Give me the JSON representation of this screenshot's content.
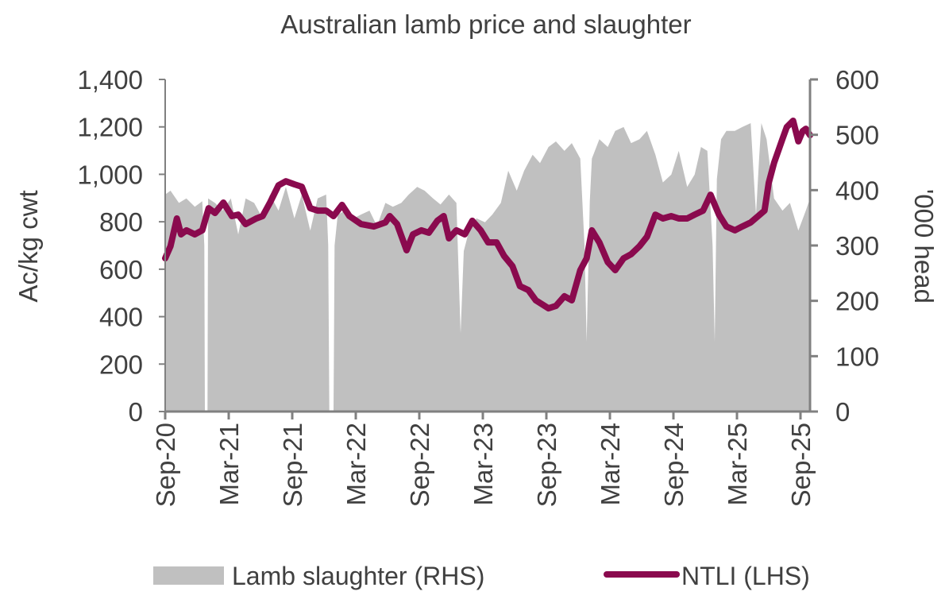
{
  "chart_data": {
    "type": "line",
    "title": "Australian lamb price and slaughter",
    "ylabel_left": "Ac/kg cwt",
    "ylabel_right": "'000 head",
    "ylim_left": [
      0,
      1400
    ],
    "ylim_right": [
      0,
      600
    ],
    "yticks_left": [
      "0",
      "200",
      "400",
      "600",
      "800",
      "1,000",
      "1,200",
      "1,400"
    ],
    "yticks_right": [
      "0",
      "100",
      "200",
      "300",
      "400",
      "500",
      "600"
    ],
    "xticks": [
      "Sep-20",
      "Mar-21",
      "Sep-21",
      "Mar-22",
      "Sep-22",
      "Mar-23",
      "Sep-23",
      "Mar-24",
      "Sep-24",
      "Mar-25",
      "Sep-25"
    ],
    "x_unit": "months since Sep-20",
    "grid": false,
    "legend_position": "bottom",
    "colors": {
      "ntli": "#8A0A4E",
      "slaughter": "#C0C0C0",
      "axis": "#808080"
    },
    "series": [
      {
        "name": "Lamb slaughter (RHS)",
        "type": "area",
        "axis": "right",
        "x": [
          0,
          0.5,
          1.3,
          2,
          2.8,
          3.5,
          3.7,
          3.75,
          4.0,
          4.05,
          4.7,
          5.4,
          6.2,
          6.9,
          7.6,
          8.4,
          9.2,
          9.9,
          10.7,
          11.4,
          12.2,
          12.9,
          13.7,
          14.4,
          15.2,
          15.4,
          15.5,
          15.9,
          16.0,
          16.3,
          17.0,
          17.8,
          18.5,
          19.3,
          20.0,
          20.8,
          21.5,
          22.3,
          23.0,
          23.8,
          24.5,
          25.3,
          26.0,
          26.8,
          27.5,
          27.9,
          28.2,
          28.7,
          29.4,
          30.2,
          30.9,
          31.7,
          32.4,
          33.2,
          33.9,
          34.7,
          35.4,
          36.2,
          36.9,
          37.7,
          38.4,
          39.2,
          39.6,
          39.8,
          40.1,
          40.3,
          41.0,
          41.8,
          42.5,
          43.3,
          44.0,
          44.8,
          45.5,
          46.3,
          47.0,
          47.8,
          48.5,
          49.3,
          50.0,
          50.6,
          51.2,
          51.7,
          51.9,
          52.1,
          52.5,
          53.0,
          53.8,
          54.5,
          55.3,
          55.6,
          55.8,
          56.1,
          56.3,
          56.8,
          57.5,
          58.3,
          59.0,
          59.8,
          60.5,
          60.9
        ],
        "values": [
          392,
          399,
          377,
          385,
          370,
          380,
          300,
          0,
          0,
          385,
          377,
          363,
          385,
          320,
          385,
          377,
          349,
          392,
          363,
          406,
          349,
          392,
          327,
          385,
          392,
          300,
          0,
          0,
          300,
          356,
          363,
          349,
          356,
          363,
          335,
          377,
          370,
          377,
          392,
          406,
          399,
          385,
          374,
          392,
          377,
          141,
          290,
          327,
          349,
          342,
          356,
          377,
          435,
          399,
          435,
          464,
          449,
          478,
          488,
          471,
          485,
          457,
          300,
          126,
          380,
          457,
          492,
          478,
          507,
          514,
          485,
          492,
          507,
          464,
          414,
          428,
          471,
          406,
          428,
          478,
          471,
          300,
          126,
          420,
          492,
          507,
          507,
          514,
          521,
          420,
          356,
          460,
          521,
          492,
          385,
          363,
          377,
          327,
          363,
          385
        ]
      },
      {
        "name": "NTLI (LHS)",
        "type": "line",
        "axis": "left",
        "x": [
          0,
          0.5,
          1.1,
          1.5,
          2.0,
          2.8,
          3.5,
          4.1,
          4.7,
          5.5,
          6.3,
          6.9,
          7.6,
          8.6,
          9.2,
          9.9,
          10.7,
          11.4,
          12.2,
          12.9,
          13.7,
          14.4,
          15.2,
          15.9,
          16.7,
          17.4,
          18.5,
          19.7,
          20.8,
          21.2,
          21.9,
          22.8,
          23.4,
          24.2,
          24.9,
          25.7,
          26.3,
          26.8,
          27.5,
          28.3,
          29.0,
          29.8,
          30.5,
          31.3,
          32.0,
          32.8,
          33.5,
          34.3,
          35.0,
          36.2,
          36.9,
          37.7,
          38.4,
          39.2,
          39.8,
          40.3,
          41.0,
          41.8,
          42.5,
          43.3,
          44.0,
          44.8,
          45.5,
          46.3,
          47.0,
          47.8,
          48.5,
          49.3,
          50.0,
          50.8,
          51.5,
          52.3,
          53.0,
          53.8,
          54.5,
          55.3,
          56.0,
          56.6,
          57.0,
          57.5,
          58.3,
          58.7,
          59.3,
          59.8,
          60.2,
          60.5,
          60.9
        ],
        "values": [
          646,
          697,
          814,
          747,
          764,
          747,
          764,
          857,
          837,
          881,
          824,
          830,
          790,
          814,
          824,
          881,
          954,
          971,
          958,
          948,
          857,
          847,
          847,
          824,
          871,
          824,
          790,
          780,
          797,
          824,
          790,
          680,
          747,
          764,
          754,
          804,
          824,
          730,
          764,
          747,
          804,
          764,
          713,
          713,
          656,
          613,
          529,
          512,
          469,
          435,
          445,
          486,
          469,
          596,
          646,
          764,
          713,
          630,
          596,
          646,
          663,
          697,
          737,
          830,
          814,
          824,
          814,
          814,
          830,
          847,
          914,
          830,
          780,
          764,
          780,
          797,
          824,
          847,
          964,
          1048,
          1149,
          1199,
          1226,
          1139,
          1182,
          1192,
          1165
        ]
      }
    ]
  },
  "legend": {
    "slaughter_label": "Lamb slaughter (RHS)",
    "ntli_label": "NTLI (LHS)"
  }
}
